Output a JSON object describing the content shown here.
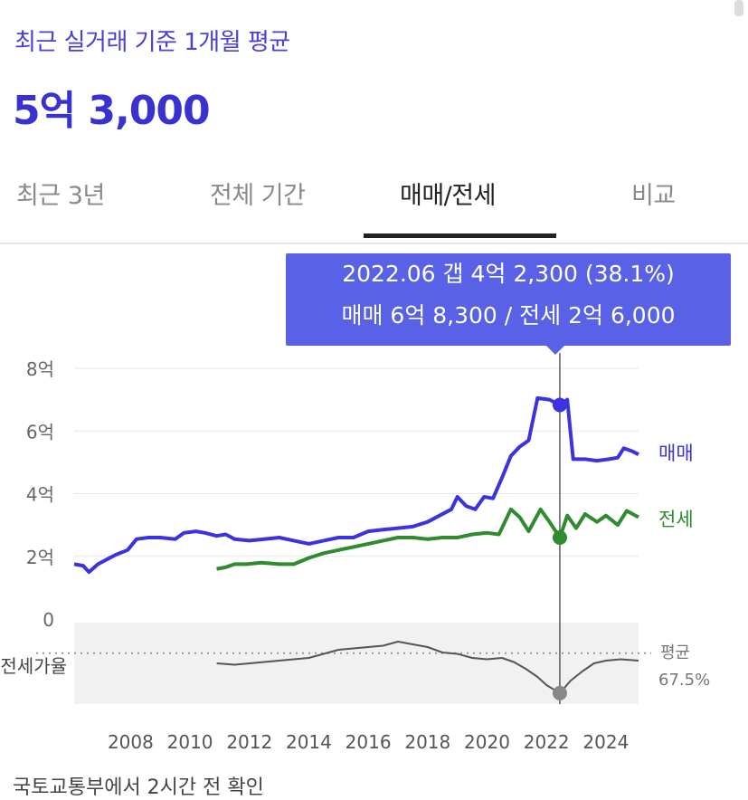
{
  "header": {
    "subtitle": "최근 실거래 기준 1개월 평균",
    "price": "5억 3,000"
  },
  "tabs": [
    {
      "label": "최근 3년",
      "active": false
    },
    {
      "label": "전체 기간",
      "active": false
    },
    {
      "label": "매매/전세",
      "active": true
    },
    {
      "label": "비교",
      "active": false
    }
  ],
  "tooltip": {
    "line1": "2022.06  갭 4억 2,300 (38.1%)",
    "line2": "매매 6억 8,300 / 전세 2억 6,000"
  },
  "colors": {
    "sale": "#3b32e0",
    "jeonse": "#2e8b2e",
    "ratio": "#555555",
    "accent": "#5961e6"
  },
  "footer_text": "국토교통부에서 2시간 전 확인",
  "chart_data": {
    "type": "line",
    "units": "억",
    "x_ticks": [
      "2008",
      "2010",
      "2012",
      "2014",
      "2016",
      "2018",
      "2020",
      "2022",
      "2024"
    ],
    "y_ticks": [
      "8억",
      "6억",
      "4억",
      "2억",
      "0"
    ],
    "ylim": [
      0,
      8
    ],
    "xlim": [
      2006.1,
      2025.1
    ],
    "selected": {
      "x": 2022.45,
      "sale": 6.83,
      "jeonse": 2.6,
      "ratio": 38.1
    },
    "series": [
      {
        "name": "매매",
        "color": "#3b32e0",
        "points": [
          [
            2006.1,
            1.75
          ],
          [
            2006.4,
            1.7
          ],
          [
            2006.6,
            1.5
          ],
          [
            2006.9,
            1.75
          ],
          [
            2007.2,
            1.9
          ],
          [
            2007.5,
            2.05
          ],
          [
            2007.9,
            2.2
          ],
          [
            2008.2,
            2.55
          ],
          [
            2008.6,
            2.6
          ],
          [
            2009.0,
            2.6
          ],
          [
            2009.5,
            2.55
          ],
          [
            2009.8,
            2.75
          ],
          [
            2010.2,
            2.8
          ],
          [
            2010.5,
            2.75
          ],
          [
            2010.9,
            2.65
          ],
          [
            2011.2,
            2.7
          ],
          [
            2011.5,
            2.55
          ],
          [
            2012.0,
            2.5
          ],
          [
            2012.5,
            2.55
          ],
          [
            2013.0,
            2.6
          ],
          [
            2013.5,
            2.5
          ],
          [
            2014.0,
            2.4
          ],
          [
            2014.5,
            2.5
          ],
          [
            2015.0,
            2.6
          ],
          [
            2015.5,
            2.6
          ],
          [
            2016.0,
            2.8
          ],
          [
            2016.5,
            2.85
          ],
          [
            2017.0,
            2.9
          ],
          [
            2017.5,
            2.95
          ],
          [
            2018.0,
            3.1
          ],
          [
            2018.4,
            3.3
          ],
          [
            2018.8,
            3.5
          ],
          [
            2019.0,
            3.9
          ],
          [
            2019.3,
            3.6
          ],
          [
            2019.6,
            3.5
          ],
          [
            2019.9,
            3.9
          ],
          [
            2020.2,
            3.85
          ],
          [
            2020.5,
            4.5
          ],
          [
            2020.8,
            5.2
          ],
          [
            2021.1,
            5.5
          ],
          [
            2021.4,
            5.7
          ],
          [
            2021.7,
            7.05
          ],
          [
            2022.1,
            7.0
          ],
          [
            2022.45,
            6.83
          ],
          [
            2022.7,
            7.0
          ],
          [
            2022.9,
            5.1
          ],
          [
            2023.3,
            5.1
          ],
          [
            2023.7,
            5.05
          ],
          [
            2024.1,
            5.1
          ],
          [
            2024.4,
            5.15
          ],
          [
            2024.6,
            5.45
          ],
          [
            2024.9,
            5.35
          ],
          [
            2025.1,
            5.25
          ]
        ]
      },
      {
        "name": "전세",
        "color": "#2e8b2e",
        "points": [
          [
            2010.9,
            1.6
          ],
          [
            2011.2,
            1.65
          ],
          [
            2011.5,
            1.75
          ],
          [
            2011.9,
            1.75
          ],
          [
            2012.4,
            1.8
          ],
          [
            2013.0,
            1.75
          ],
          [
            2013.5,
            1.75
          ],
          [
            2014.0,
            1.95
          ],
          [
            2014.5,
            2.1
          ],
          [
            2015.0,
            2.2
          ],
          [
            2015.5,
            2.3
          ],
          [
            2016.0,
            2.4
          ],
          [
            2016.5,
            2.5
          ],
          [
            2017.0,
            2.6
          ],
          [
            2017.5,
            2.6
          ],
          [
            2018.0,
            2.55
          ],
          [
            2018.5,
            2.6
          ],
          [
            2019.0,
            2.6
          ],
          [
            2019.5,
            2.7
          ],
          [
            2020.0,
            2.75
          ],
          [
            2020.4,
            2.7
          ],
          [
            2020.8,
            3.5
          ],
          [
            2021.1,
            3.25
          ],
          [
            2021.4,
            2.8
          ],
          [
            2021.8,
            3.5
          ],
          [
            2022.1,
            3.1
          ],
          [
            2022.45,
            2.6
          ],
          [
            2022.7,
            3.3
          ],
          [
            2023.0,
            2.9
          ],
          [
            2023.3,
            3.35
          ],
          [
            2023.7,
            3.1
          ],
          [
            2024.0,
            3.3
          ],
          [
            2024.4,
            3.0
          ],
          [
            2024.7,
            3.45
          ],
          [
            2025.1,
            3.25
          ]
        ]
      },
      {
        "name": "전세가율",
        "color": "#555555",
        "unit": "%",
        "average": "67.5%",
        "points": [
          [
            2010.9,
            60
          ],
          [
            2011.5,
            59
          ],
          [
            2012.0,
            60
          ],
          [
            2012.5,
            61
          ],
          [
            2013.0,
            62
          ],
          [
            2013.5,
            63
          ],
          [
            2014.0,
            64
          ],
          [
            2014.5,
            67
          ],
          [
            2015.0,
            70
          ],
          [
            2015.5,
            71
          ],
          [
            2016.0,
            72
          ],
          [
            2016.5,
            73
          ],
          [
            2017.0,
            76
          ],
          [
            2017.5,
            74
          ],
          [
            2018.0,
            72
          ],
          [
            2018.5,
            68
          ],
          [
            2019.0,
            67
          ],
          [
            2019.5,
            64
          ],
          [
            2020.0,
            63
          ],
          [
            2020.5,
            64
          ],
          [
            2020.9,
            61
          ],
          [
            2021.3,
            56
          ],
          [
            2021.7,
            50
          ],
          [
            2022.0,
            44
          ],
          [
            2022.45,
            38.1
          ],
          [
            2022.8,
            47
          ],
          [
            2023.2,
            54
          ],
          [
            2023.6,
            60
          ],
          [
            2024.0,
            62
          ],
          [
            2024.5,
            63
          ],
          [
            2025.1,
            62
          ]
        ]
      }
    ],
    "labels": {
      "sale": "매매",
      "jeonse": "전세",
      "ratio": "전세가율",
      "ratio_avg_label": "평균",
      "ratio_avg_value": "67.5%"
    },
    "ratio_range": [
      30,
      90
    ]
  }
}
